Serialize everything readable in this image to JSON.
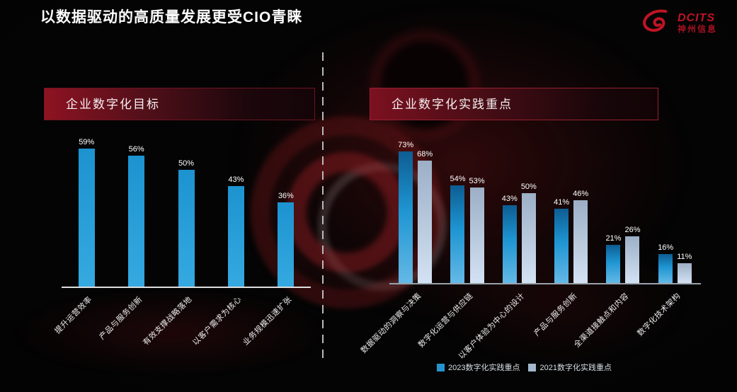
{
  "slide": {
    "title": "以数据驱动的高质量发展更受CIO青睐"
  },
  "logo": {
    "brand": "DCITS",
    "company": "神州信息",
    "color": "#c01425"
  },
  "panels": [
    {
      "header": "企业数字化目标"
    },
    {
      "header": "企业数字化实践重点"
    }
  ],
  "legend": {
    "items": [
      {
        "label": "2023数字化实践重点",
        "color": "#2594cd"
      },
      {
        "label": "2021数字化实践重点",
        "color": "#a3b7cd"
      }
    ]
  },
  "chart_data": [
    {
      "type": "bar",
      "title": "企业数字化目标",
      "categories": [
        "提升运营效率",
        "产品与服务创新",
        "有效支撑战略落地",
        "以客户需求为核心",
        "业务规模迅速扩张"
      ],
      "values": [
        59,
        56,
        50,
        43,
        36
      ],
      "unit": "%",
      "ylim": [
        0,
        65
      ],
      "grid": false,
      "value_labels_shown": true,
      "bar_color_top": "#1c93d0",
      "bar_color_bottom": "#35a9e0"
    },
    {
      "type": "bar",
      "title": "企业数字化实践重点",
      "categories": [
        "数据驱动的洞察与决策",
        "数字化运营与供应链",
        "以客户体验为中心的设计",
        "产品与服务创新",
        "全渠道接触点和内容",
        "数字化技术架构"
      ],
      "series": [
        {
          "name": "2023数字化实践重点",
          "values": [
            73,
            54,
            43,
            41,
            21,
            16
          ],
          "color_top": "#0d5d92",
          "color_mid": "#1e95d2",
          "color_bottom": "#64b9e6"
        },
        {
          "name": "2021数字化实践重点",
          "values": [
            68,
            53,
            50,
            46,
            26,
            11
          ],
          "color_top": "#9cafc6",
          "color_bottom": "#d3e2f3"
        }
      ],
      "unit": "%",
      "ylim": [
        0,
        80
      ],
      "grid": false,
      "value_labels_shown": true,
      "legend_position": "bottom-right"
    }
  ]
}
